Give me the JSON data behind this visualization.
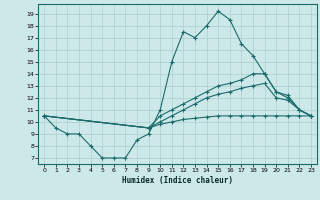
{
  "xlabel": "Humidex (Indice chaleur)",
  "bg_color": "#cde8e8",
  "grid_color": "#aacfcf",
  "line_color": "#1a6b6b",
  "xlim": [
    -0.5,
    23.5
  ],
  "ylim": [
    6.5,
    19.8
  ],
  "yticks": [
    7,
    8,
    9,
    10,
    11,
    12,
    13,
    14,
    15,
    16,
    17,
    18,
    19
  ],
  "xticks": [
    0,
    1,
    2,
    3,
    4,
    5,
    6,
    7,
    8,
    9,
    10,
    11,
    12,
    13,
    14,
    15,
    16,
    17,
    18,
    19,
    20,
    21,
    22,
    23
  ],
  "line1_x": [
    0,
    1,
    2,
    3,
    4,
    5,
    6,
    7,
    8,
    9,
    10,
    11,
    12,
    13,
    14,
    15,
    16,
    17,
    18,
    19,
    20,
    21,
    22,
    23
  ],
  "line1_y": [
    10.5,
    9.5,
    9.0,
    9.0,
    8.0,
    7.0,
    7.0,
    7.0,
    8.5,
    9.0,
    11.0,
    15.0,
    17.5,
    17.0,
    18.0,
    19.2,
    18.5,
    16.5,
    15.5,
    14.0,
    12.5,
    12.0,
    11.0,
    10.5
  ],
  "line2_x": [
    0,
    9,
    10,
    11,
    12,
    13,
    14,
    15,
    16,
    17,
    18,
    19,
    20,
    21,
    22,
    23
  ],
  "line2_y": [
    10.5,
    9.5,
    10.5,
    11.0,
    11.5,
    12.0,
    12.5,
    13.0,
    13.2,
    13.5,
    14.0,
    14.0,
    12.5,
    12.2,
    11.0,
    10.5
  ],
  "line3_x": [
    0,
    9,
    10,
    11,
    12,
    13,
    14,
    15,
    16,
    17,
    18,
    19,
    20,
    21,
    22,
    23
  ],
  "line3_y": [
    10.5,
    9.5,
    10.0,
    10.5,
    11.0,
    11.5,
    12.0,
    12.3,
    12.5,
    12.8,
    13.0,
    13.2,
    12.0,
    11.8,
    11.0,
    10.5
  ],
  "line4_x": [
    0,
    9,
    10,
    11,
    12,
    13,
    14,
    15,
    16,
    17,
    18,
    19,
    20,
    21,
    22,
    23
  ],
  "line4_y": [
    10.5,
    9.5,
    9.8,
    10.0,
    10.2,
    10.3,
    10.4,
    10.5,
    10.5,
    10.5,
    10.5,
    10.5,
    10.5,
    10.5,
    10.5,
    10.5
  ]
}
